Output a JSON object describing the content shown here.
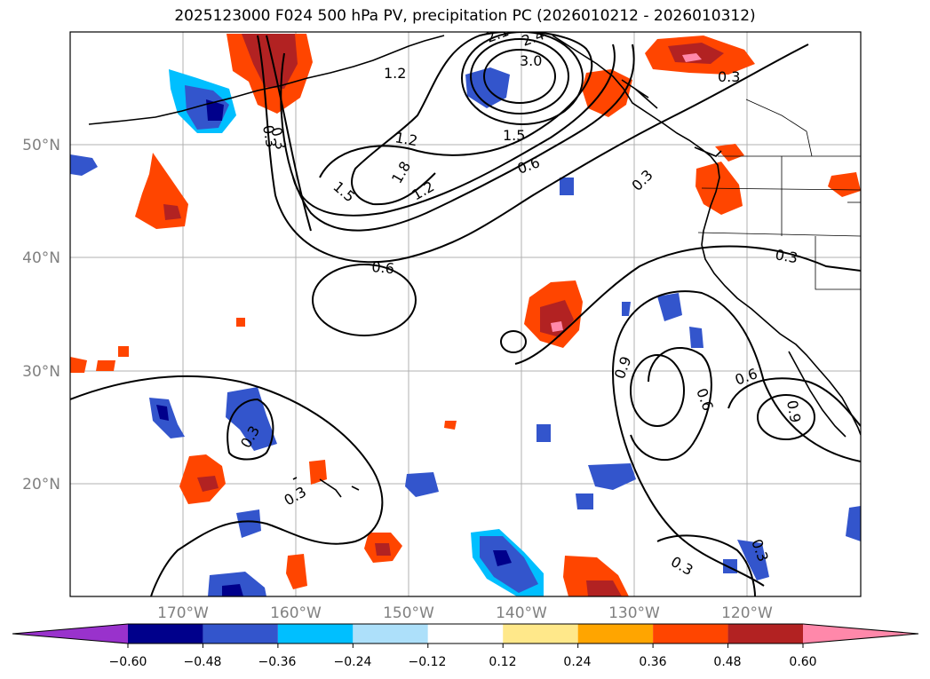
{
  "title": "2025123000 F024 500 hPa PV, precipitation PC (2026010212 - 2026010312)",
  "latitude_labels": [
    "50°N",
    "40°N",
    "30°N",
    "20°N"
  ],
  "longitude_labels": [
    "170°W",
    "160°W",
    "150°W",
    "140°W",
    "130°W",
    "120°W"
  ],
  "contour_labels": [
    "1.2",
    "1.2",
    "1.5",
    "1.5",
    "1.8",
    "1.2",
    "2.1",
    "2.4",
    "3.0",
    "0.6",
    "0.3",
    "0.3",
    "0.3",
    "0.3",
    "0.6",
    "0.9",
    "0.6",
    "0.6",
    "0.9",
    "0.3",
    "0.3",
    "0.3",
    "0.3",
    "0.3"
  ],
  "colorbar": {
    "tick_labels": [
      "−0.60",
      "−0.48",
      "−0.36",
      "−0.24",
      "−0.12",
      "0.12",
      "0.24",
      "0.36",
      "0.48",
      "0.60"
    ],
    "colors": [
      "#9932CC",
      "#00008B",
      "#3355CC",
      "#00BFFF",
      "#ADE0FA",
      "#FFFFFF",
      "#FFE88A",
      "#FFA500",
      "#FF4500",
      "#B22222",
      "#FF88AA"
    ]
  }
}
